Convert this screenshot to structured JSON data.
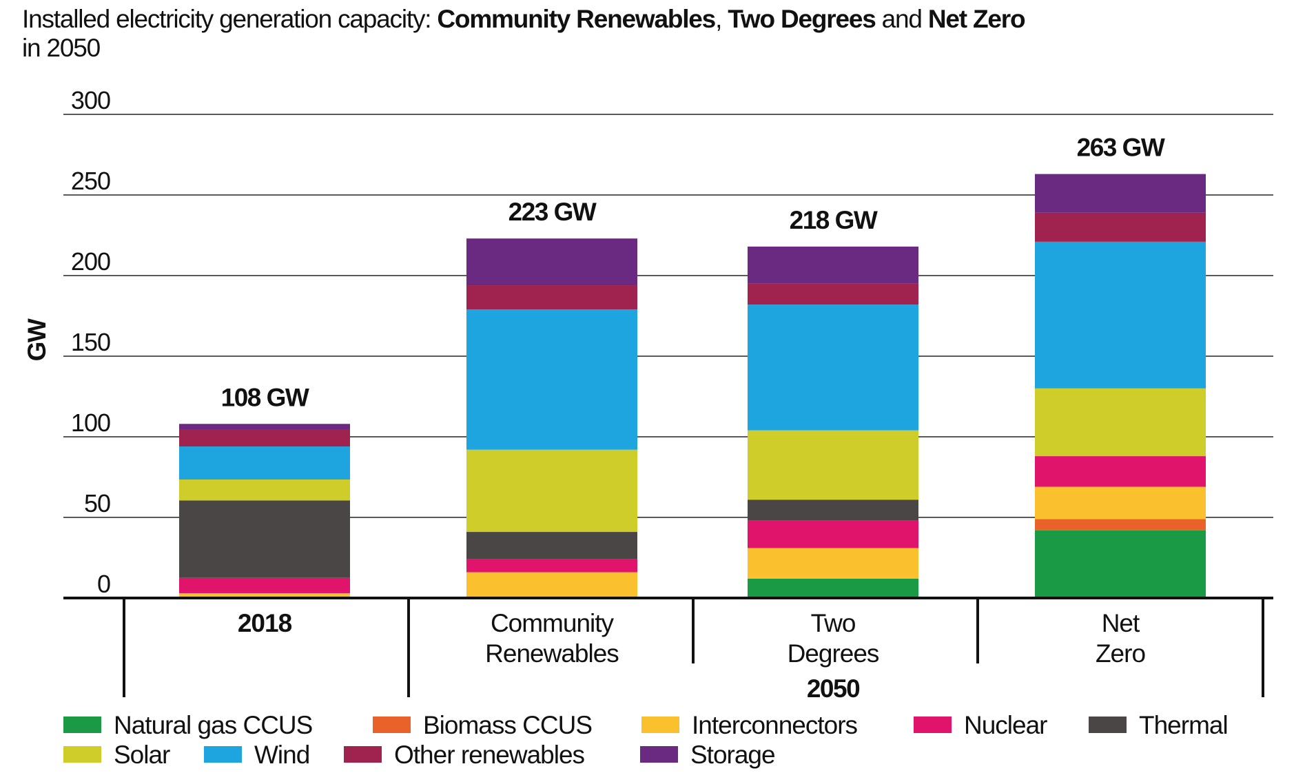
{
  "chart_data": {
    "type": "bar",
    "stacked": true,
    "title": {
      "prefix": "Installed electricity generation capacity: ",
      "s1": "Community Renewables",
      "sep": ", ",
      "s2": "Two Degrees",
      "and": " and ",
      "s3": "Net Zero",
      "line2": "in 2050"
    },
    "ylabel": "GW",
    "ylim": [
      0,
      300
    ],
    "yticks": [
      "0",
      "50",
      "100",
      "150",
      "200",
      "250",
      "300"
    ],
    "grid": true,
    "group_label": "2050",
    "categories": [
      {
        "lines": [
          "2018"
        ],
        "bold": true,
        "total_label": "108 GW"
      },
      {
        "lines": [
          "Community",
          "Renewables"
        ],
        "bold": false,
        "total_label": "223 GW"
      },
      {
        "lines": [
          "Two",
          "Degrees"
        ],
        "bold": false,
        "total_label": "218 GW"
      },
      {
        "lines": [
          "Net",
          "Zero"
        ],
        "bold": false,
        "total_label": "263 GW"
      }
    ],
    "series": [
      {
        "name": "Natural gas CCUS",
        "color": "#1a9a45",
        "values": [
          0,
          0,
          12,
          42
        ]
      },
      {
        "name": "Biomass CCUS",
        "color": "#e8622a",
        "values": [
          0,
          0,
          0,
          7
        ]
      },
      {
        "name": "Interconnectors",
        "color": "#fbc02d",
        "values": [
          3,
          16,
          19,
          20
        ]
      },
      {
        "name": "Nuclear",
        "color": "#e0146a",
        "values": [
          9.5,
          8,
          17,
          19
        ]
      },
      {
        "name": "Thermal",
        "color": "#4a4646",
        "values": [
          48,
          17,
          13,
          0
        ]
      },
      {
        "name": "Solar",
        "color": "#cfcd2a",
        "values": [
          13,
          51,
          43,
          42
        ]
      },
      {
        "name": "Wind",
        "color": "#1ea5df",
        "values": [
          20.5,
          87,
          78,
          91
        ]
      },
      {
        "name": "Other renewables",
        "color": "#a0224f",
        "values": [
          10.5,
          15,
          13,
          18
        ]
      },
      {
        "name": "Storage",
        "color": "#6a2a82",
        "values": [
          3.5,
          29,
          23,
          24
        ]
      }
    ],
    "legend": "bottom"
  }
}
